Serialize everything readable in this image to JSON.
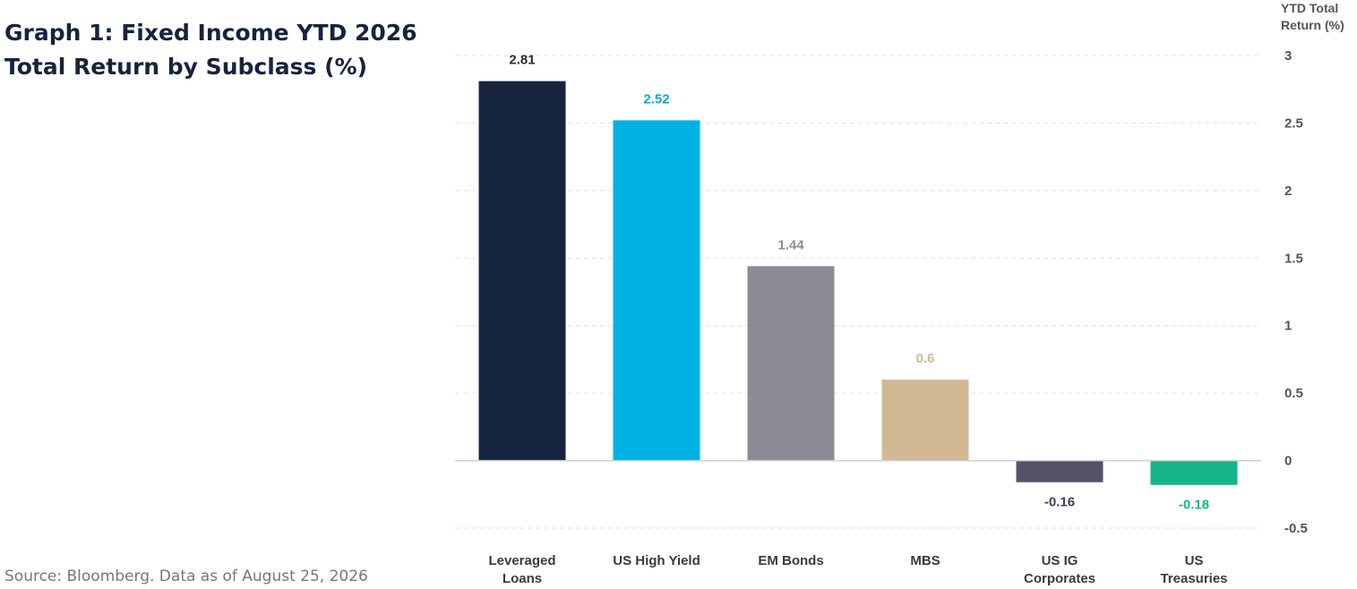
{
  "title_lines": [
    "Graph 1: Fixed Income YTD 2026",
    "Total Return by Subclass (%)"
  ],
  "source": "Source: Bloomberg. Data as of August 25, 2026",
  "chart_data": {
    "type": "bar",
    "title": "Graph 1: Fixed Income YTD 2026 Total Return by Subclass (%)",
    "ylabel": "YTD Total Return (%)",
    "ylabel_lines": [
      "YTD Total",
      "Return (%)"
    ],
    "xlabel": "",
    "categories": [
      "Leveraged Loans",
      "US High Yield",
      "EM Bonds",
      "MBS",
      "US IG Corporates",
      "US Treasuries"
    ],
    "category_label_lines": [
      [
        "Leveraged",
        "Loans"
      ],
      [
        "US High Yield"
      ],
      [
        "EM Bonds"
      ],
      [
        "MBS"
      ],
      [
        "US IG",
        "Corporates"
      ],
      [
        "US",
        "Treasuries"
      ]
    ],
    "values": [
      2.81,
      2.52,
      1.44,
      0.6,
      -0.16,
      -0.18
    ],
    "data_labels": [
      "2.81",
      "2.52",
      "1.44",
      "0.6",
      "-0.16",
      "-0.18"
    ],
    "colors": [
      "#17253f",
      "#00b2e3",
      "#8a8b95",
      "#d3b894",
      "#555169",
      "#15b48a"
    ],
    "label_colors": [
      "#2b2b2b",
      "#00a9db",
      "#8a8b95",
      "#d3b894",
      "#3f3f55",
      "#15b48a"
    ],
    "ylim": [
      -0.5,
      3
    ],
    "yticks": [
      3,
      2.5,
      2,
      1.5,
      1,
      0.5,
      0,
      -0.5
    ],
    "ytick_labels": [
      "3",
      "2.5",
      "2",
      "1.5",
      "1",
      "0.5",
      "0",
      "-0.5"
    ],
    "y_axis_side": "right",
    "grid": true,
    "legend": false
  }
}
